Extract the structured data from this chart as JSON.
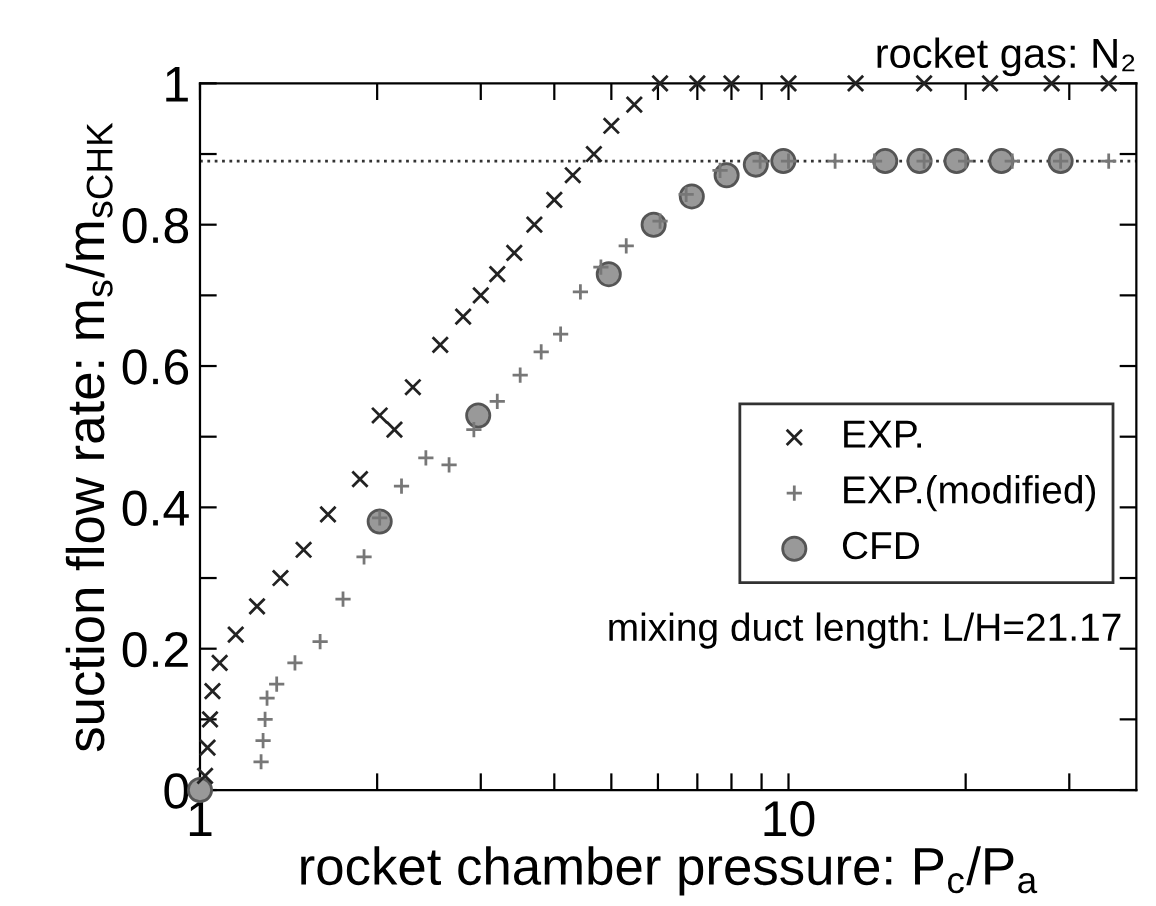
{
  "chart_data": {
    "type": "scatter",
    "xlabel": "rocket chamber pressure: P$_{c}$/P$_{a}$",
    "ylabel": "suction flow rate: m$_{s}$/m$_{sCHK}$",
    "log": "x",
    "xlim": [
      1,
      39
    ],
    "ylim": [
      0,
      1
    ],
    "xticks": [
      {
        "value": 1,
        "label": "1"
      },
      {
        "value": 2,
        "label": null
      },
      {
        "value": 3,
        "label": null
      },
      {
        "value": 4,
        "label": null
      },
      {
        "value": 5,
        "label": null
      },
      {
        "value": 6,
        "label": null
      },
      {
        "value": 7,
        "label": null
      },
      {
        "value": 8,
        "label": null
      },
      {
        "value": 9,
        "label": null
      },
      {
        "value": 10,
        "label": "10"
      },
      {
        "value": 20,
        "label": null
      },
      {
        "value": 30,
        "label": null
      }
    ],
    "yticks": [
      0,
      {
        "value": 0.1,
        "label": null
      },
      0.2,
      {
        "value": 0.3,
        "label": null
      },
      0.4,
      {
        "value": 0.5,
        "label": null
      },
      0.6,
      {
        "value": 0.7,
        "label": null
      },
      0.8,
      {
        "value": 0.9,
        "label": null
      },
      1
    ],
    "grid": false,
    "legend": "right",
    "ref_lines": [
      {
        "axis": "y",
        "value": 0.89,
        "line_style": "dotted",
        "color": "#333333"
      }
    ],
    "annotations": [
      "rocket gas: N₂",
      "mixing duct length: L/H=21.17"
    ],
    "series": [
      {
        "name": "EXP.",
        "color": "#222222",
        "marker": "cross",
        "x": [
          1.02,
          1.03,
          1.04,
          1.05,
          1.08,
          1.15,
          1.25,
          1.37,
          1.5,
          1.65,
          1.87,
          2.02,
          2.14,
          2.3,
          2.56,
          2.8,
          3.0,
          3.2,
          3.42,
          3.7,
          4.0,
          4.3,
          4.67,
          5.0,
          5.47,
          6.05,
          7,
          8,
          10,
          13,
          17,
          22,
          28,
          35
        ],
        "values": [
          0.02,
          0.06,
          0.1,
          0.14,
          0.18,
          0.22,
          0.26,
          0.3,
          0.34,
          0.39,
          0.44,
          0.53,
          0.51,
          0.57,
          0.63,
          0.67,
          0.7,
          0.73,
          0.76,
          0.8,
          0.835,
          0.87,
          0.9,
          0.94,
          0.97,
          1.0,
          1.0,
          1.0,
          1.0,
          1.0,
          1.0,
          1.0,
          1.0,
          1.0
        ]
      },
      {
        "name": "EXP.(modified)",
        "color": "#777777",
        "marker": "plus",
        "x": [
          1.27,
          1.28,
          1.29,
          1.3,
          1.35,
          1.45,
          1.6,
          1.75,
          1.9,
          2.02,
          2.2,
          2.42,
          2.65,
          2.92,
          3.2,
          3.5,
          3.8,
          4.1,
          4.43,
          4.8,
          5.3,
          6.05,
          6.7,
          7.65,
          8.95,
          10,
          12,
          14,
          17,
          20,
          24,
          29,
          35
        ],
        "values": [
          0.04,
          0.07,
          0.1,
          0.13,
          0.15,
          0.18,
          0.21,
          0.27,
          0.33,
          0.385,
          0.43,
          0.47,
          0.46,
          0.51,
          0.55,
          0.587,
          0.62,
          0.645,
          0.705,
          0.74,
          0.77,
          0.805,
          0.843,
          0.877,
          0.89,
          0.89,
          0.89,
          0.89,
          0.89,
          0.89,
          0.89,
          0.89,
          0.89
        ]
      },
      {
        "name": "CFD",
        "color": "#999999",
        "marker": "circle",
        "x": [
          1,
          2.02,
          2.97,
          4.95,
          5.9,
          6.85,
          7.85,
          8.8,
          9.8,
          14.6,
          16.7,
          19.3,
          23,
          29
        ],
        "values": [
          0,
          0.38,
          0.53,
          0.73,
          0.8,
          0.84,
          0.87,
          0.885,
          0.89,
          0.89,
          0.89,
          0.89,
          0.89,
          0.89
        ]
      }
    ]
  }
}
